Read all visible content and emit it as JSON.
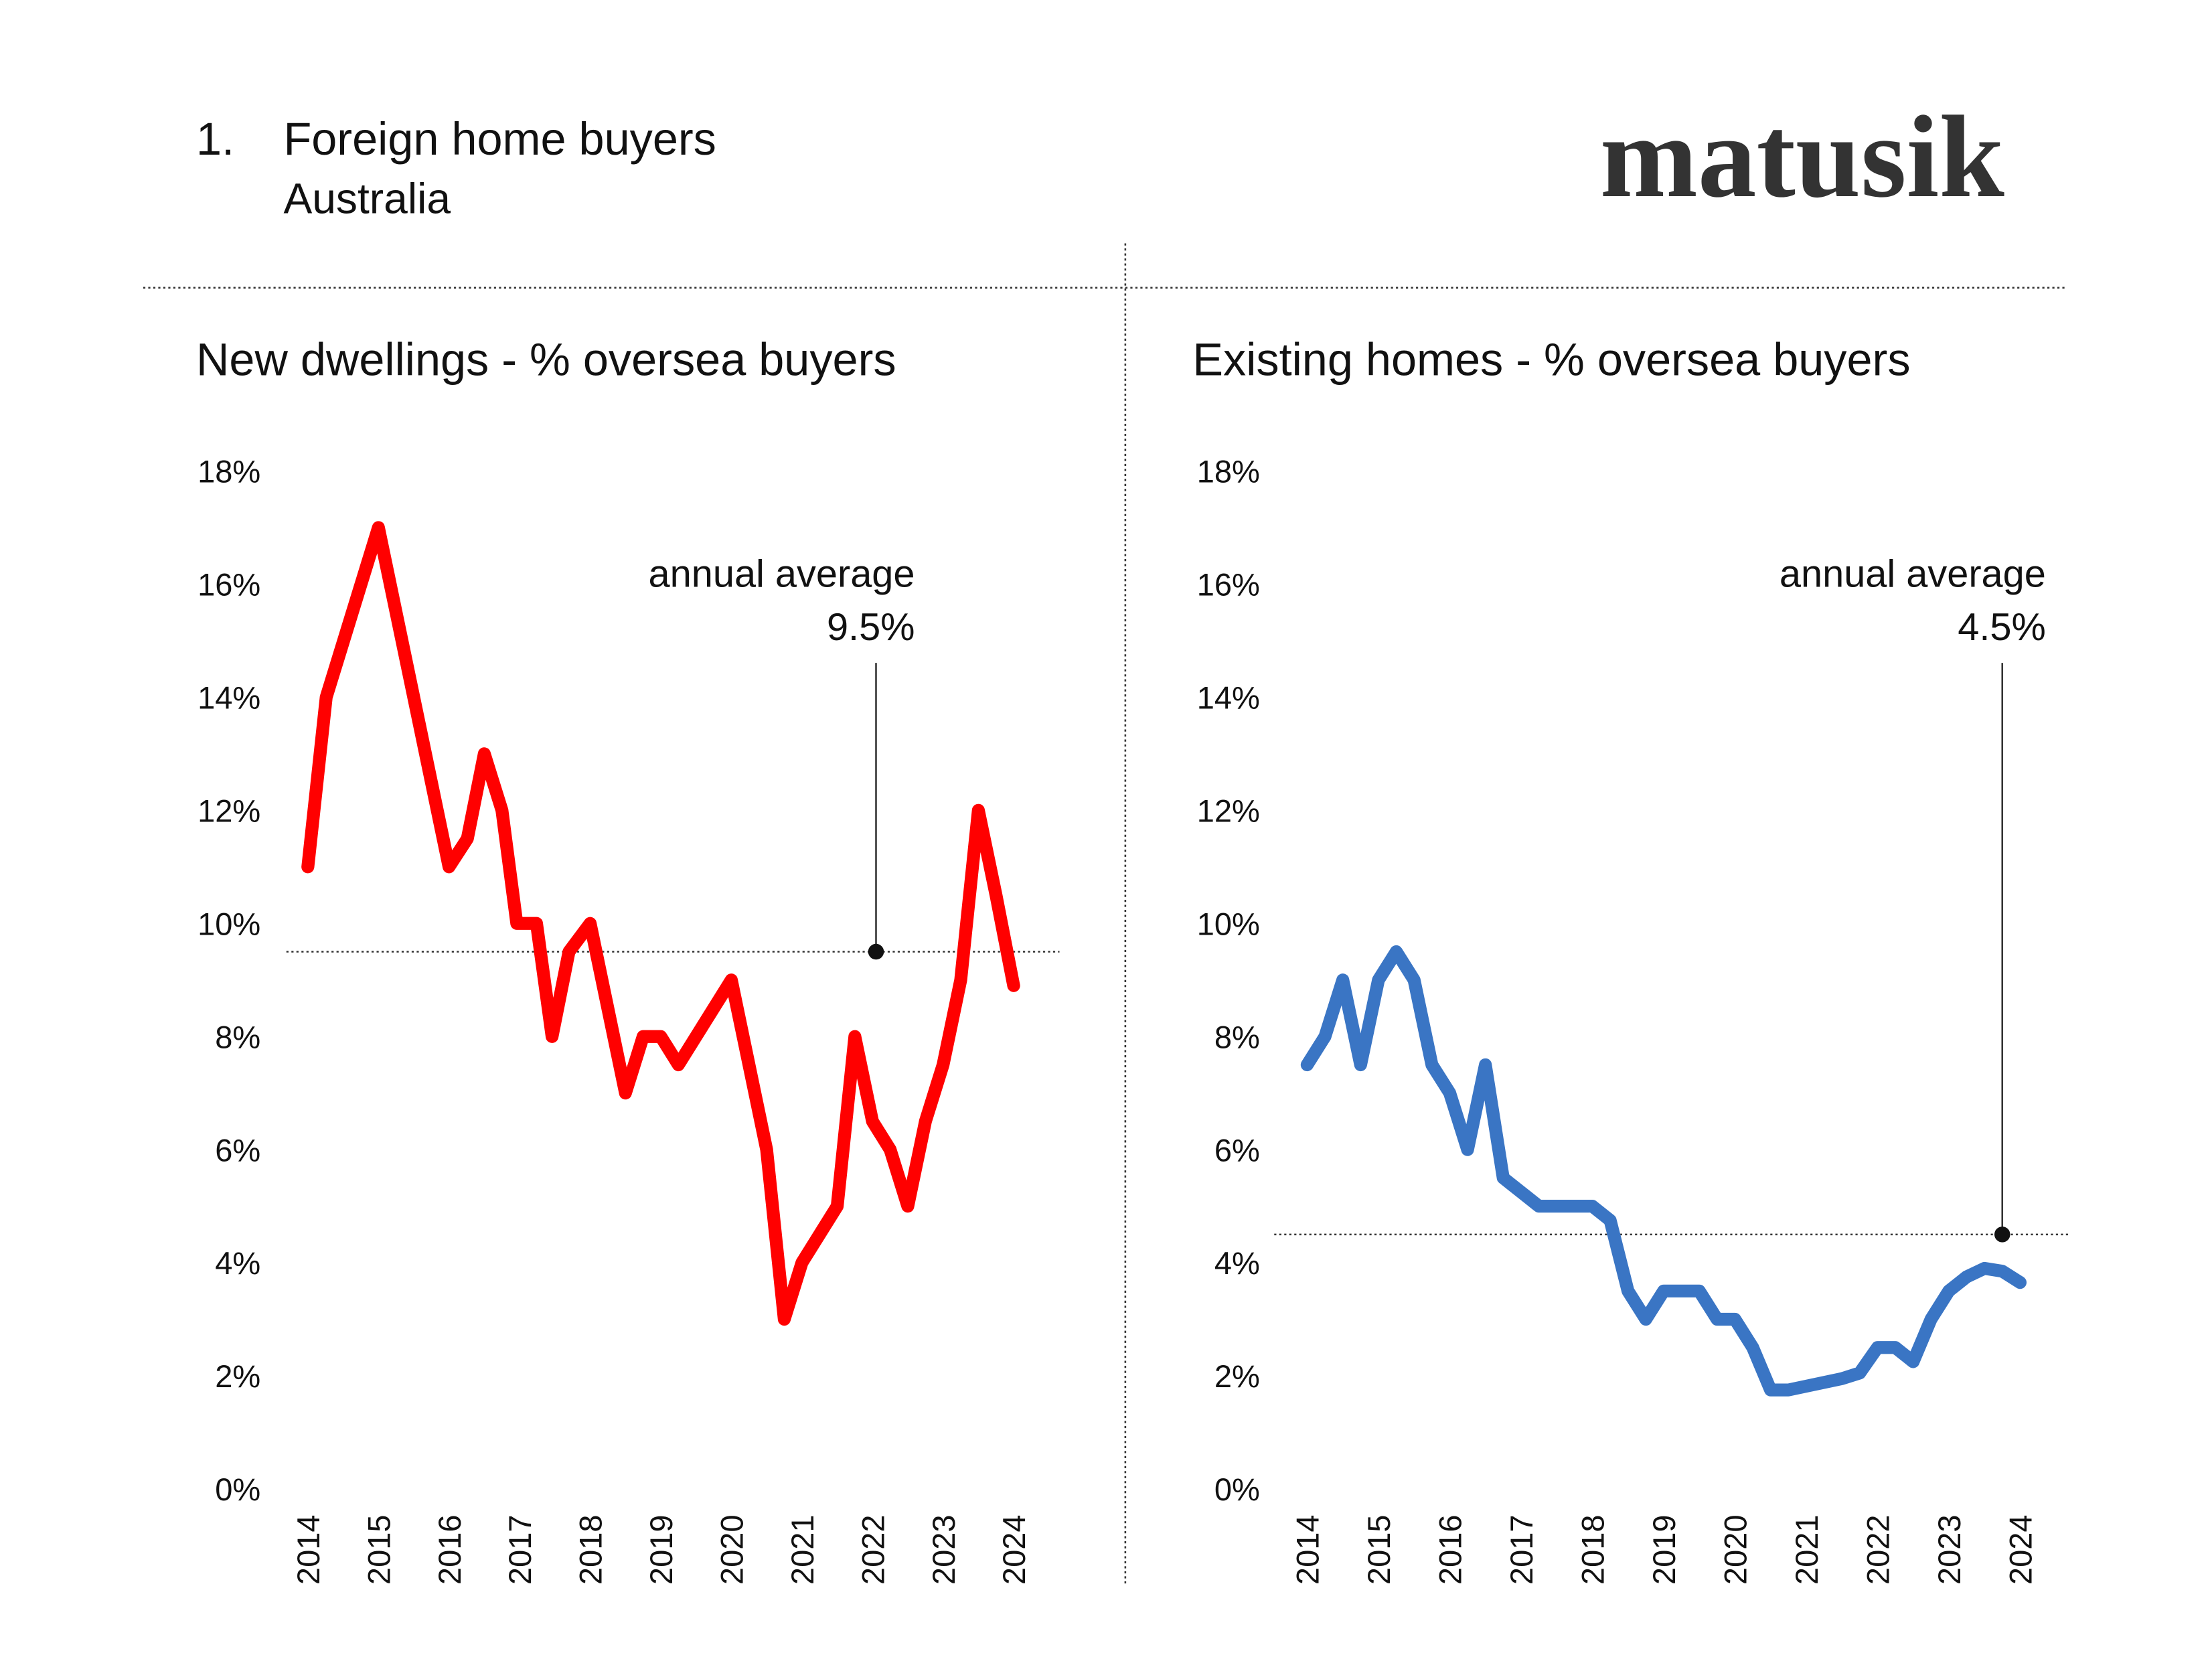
{
  "header": {
    "number": "1.",
    "title": "Foreign home buyers",
    "subtitle": "Australia",
    "logo": "matusik"
  },
  "chart_data": [
    {
      "type": "line",
      "title": "New dwellings - % oversea buyers",
      "color": "#ff0000",
      "x": [
        2014.0,
        2014.26,
        2015.0,
        2016.0,
        2016.26,
        2016.5,
        2016.75,
        2016.96,
        2017.24,
        2017.46,
        2017.7,
        2018.0,
        2018.5,
        2018.75,
        2019.0,
        2019.25,
        2020.0,
        2020.5,
        2020.75,
        2021.0,
        2021.5,
        2021.75,
        2022.0,
        2022.25,
        2022.5,
        2022.75,
        2023.0,
        2023.25,
        2023.5,
        2023.75,
        2024.0
      ],
      "values": [
        11.0,
        14.0,
        17.0,
        11.0,
        11.5,
        13.0,
        12.0,
        10.0,
        10.0,
        8.0,
        9.5,
        10.0,
        7.0,
        8.0,
        8.0,
        7.5,
        9.0,
        6.0,
        3.0,
        4.0,
        5.0,
        8.0,
        6.5,
        6.0,
        5.0,
        6.5,
        7.5,
        9.0,
        12.0,
        10.5,
        8.9
      ],
      "xlim": [
        2014,
        2024
      ],
      "xticks": [
        2014,
        2015,
        2016,
        2017,
        2018,
        2019,
        2020,
        2021,
        2022,
        2023,
        2024
      ],
      "ylim": [
        0,
        18
      ],
      "yticks": [
        {
          "value": 0,
          "label": "0%"
        },
        {
          "value": 2,
          "label": "2%"
        },
        {
          "value": 4,
          "label": "4%"
        },
        {
          "value": 6,
          "label": "6%"
        },
        {
          "value": 8,
          "label": "8%"
        },
        {
          "value": 10,
          "label": "10%"
        },
        {
          "value": 12,
          "label": "12%"
        },
        {
          "value": 14,
          "label": "14%"
        },
        {
          "value": 16,
          "label": "16%"
        },
        {
          "value": 18,
          "label": "18%"
        }
      ],
      "annotation": {
        "text": "annual average",
        "value": 9.5,
        "value_label": "9.5%",
        "x": 2022.05
      }
    },
    {
      "type": "line",
      "title": "Existing homes - % oversea buyers",
      "color": "#3a75c4",
      "x": [
        2014.0,
        2014.25,
        2014.5,
        2014.75,
        2015.0,
        2015.25,
        2015.5,
        2015.75,
        2016.0,
        2016.25,
        2016.5,
        2016.75,
        2017.0,
        2017.25,
        2018.0,
        2018.25,
        2018.5,
        2018.75,
        2019.0,
        2019.5,
        2019.75,
        2020.0,
        2020.25,
        2020.5,
        2020.75,
        2021.5,
        2021.75,
        2022.0,
        2022.25,
        2022.5,
        2022.75,
        2023.0,
        2023.25,
        2023.5,
        2023.75,
        2024.0
      ],
      "values": [
        7.5,
        8.0,
        9.0,
        7.5,
        9.0,
        9.5,
        9.0,
        7.5,
        7.0,
        6.0,
        7.5,
        5.5,
        5.25,
        5.0,
        5.0,
        4.75,
        3.5,
        3.0,
        3.5,
        3.5,
        3.0,
        3.0,
        2.5,
        1.75,
        1.75,
        1.95,
        2.05,
        2.5,
        2.5,
        2.25,
        3.0,
        3.5,
        3.75,
        3.9,
        3.85,
        3.65
      ],
      "xlim": [
        2014,
        2024
      ],
      "xticks": [
        2014,
        2015,
        2016,
        2017,
        2018,
        2019,
        2020,
        2021,
        2022,
        2023,
        2024
      ],
      "ylim": [
        0,
        18
      ],
      "yticks": [
        {
          "value": 0,
          "label": "0%"
        },
        {
          "value": 2,
          "label": "2%"
        },
        {
          "value": 4,
          "label": "4%"
        },
        {
          "value": 6,
          "label": "6%"
        },
        {
          "value": 8,
          "label": "8%"
        },
        {
          "value": 10,
          "label": "10%"
        },
        {
          "value": 12,
          "label": "12%"
        },
        {
          "value": 14,
          "label": "14%"
        },
        {
          "value": 16,
          "label": "16%"
        },
        {
          "value": 18,
          "label": "18%"
        }
      ],
      "annotation": {
        "text": "annual average",
        "value": 4.5,
        "value_label": "4.5%",
        "x": 2023.75
      }
    }
  ]
}
